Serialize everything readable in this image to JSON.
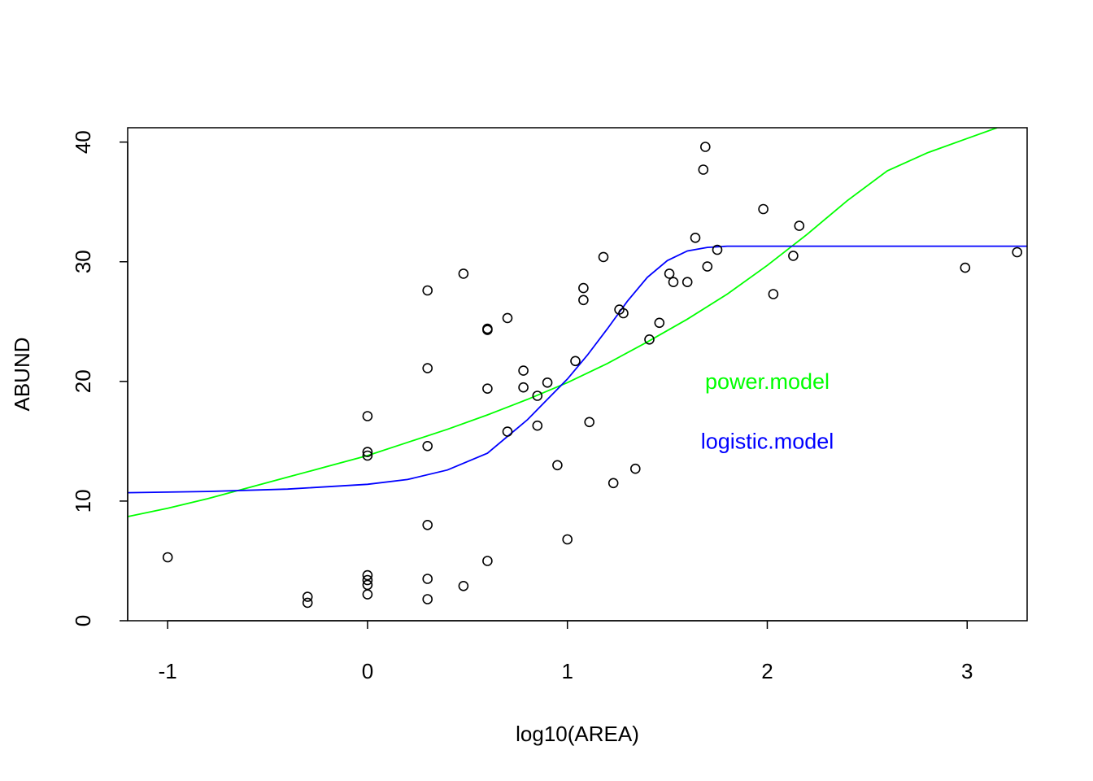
{
  "chart_data": {
    "type": "scatter",
    "title": "",
    "xlabel": "log10(AREA)",
    "ylabel": "ABUND",
    "xlim": [
      -1.2,
      3.3
    ],
    "ylim": [
      0,
      41.2
    ],
    "x_ticks": [
      "-1",
      "0",
      "1",
      "2",
      "3"
    ],
    "x_tick_values": [
      -1,
      0,
      1,
      2,
      3
    ],
    "y_ticks": [
      "0",
      "10",
      "20",
      "30",
      "40"
    ],
    "y_tick_values": [
      0,
      10,
      20,
      30,
      40
    ],
    "grid": false,
    "points": [
      [
        -1.0,
        5.3
      ],
      [
        -0.3,
        2.0
      ],
      [
        -0.3,
        1.5
      ],
      [
        0.0,
        17.1
      ],
      [
        0.0,
        14.1
      ],
      [
        0.0,
        13.8
      ],
      [
        0.0,
        3.8
      ],
      [
        0.0,
        3.4
      ],
      [
        0.0,
        3.0
      ],
      [
        0.0,
        2.2
      ],
      [
        0.3,
        27.6
      ],
      [
        0.3,
        21.1
      ],
      [
        0.3,
        14.6
      ],
      [
        0.3,
        8.0
      ],
      [
        0.3,
        3.5
      ],
      [
        0.3,
        1.8
      ],
      [
        0.48,
        29.0
      ],
      [
        0.48,
        2.9
      ],
      [
        0.6,
        24.3
      ],
      [
        0.6,
        24.4
      ],
      [
        0.6,
        19.4
      ],
      [
        0.6,
        5.0
      ],
      [
        0.7,
        25.3
      ],
      [
        0.7,
        15.8
      ],
      [
        0.78,
        20.9
      ],
      [
        0.78,
        19.5
      ],
      [
        0.85,
        18.8
      ],
      [
        0.85,
        16.3
      ],
      [
        0.9,
        19.9
      ],
      [
        0.95,
        13.0
      ],
      [
        1.0,
        6.8
      ],
      [
        1.04,
        21.7
      ],
      [
        1.08,
        27.8
      ],
      [
        1.08,
        26.8
      ],
      [
        1.11,
        16.6
      ],
      [
        1.18,
        30.4
      ],
      [
        1.23,
        11.5
      ],
      [
        1.26,
        26.0
      ],
      [
        1.28,
        25.7
      ],
      [
        1.34,
        12.7
      ],
      [
        1.41,
        23.5
      ],
      [
        1.46,
        24.9
      ],
      [
        1.51,
        29.0
      ],
      [
        1.53,
        28.3
      ],
      [
        1.6,
        28.3
      ],
      [
        1.64,
        32.0
      ],
      [
        1.68,
        37.7
      ],
      [
        1.69,
        39.6
      ],
      [
        1.7,
        29.6
      ],
      [
        1.75,
        31.0
      ],
      [
        1.98,
        34.4
      ],
      [
        2.03,
        27.3
      ],
      [
        2.13,
        30.5
      ],
      [
        2.16,
        33.0
      ],
      [
        2.99,
        29.5
      ],
      [
        3.25,
        30.8
      ]
    ],
    "series": [
      {
        "name": "power.model",
        "color": "#00ff00",
        "x": [
          -1.2,
          -1.0,
          -0.8,
          -0.6,
          -0.4,
          -0.2,
          0.0,
          0.2,
          0.4,
          0.6,
          0.8,
          1.0,
          1.2,
          1.4,
          1.6,
          1.8,
          2.0,
          2.2,
          2.4,
          2.6,
          2.8,
          3.0,
          3.15
        ],
        "y": [
          8.7,
          9.4,
          10.2,
          11.1,
          12.0,
          12.9,
          13.8,
          14.9,
          16.0,
          17.2,
          18.5,
          19.9,
          21.5,
          23.3,
          25.2,
          27.3,
          29.7,
          32.3,
          35.1,
          37.6,
          39.1,
          40.3,
          41.2
        ]
      },
      {
        "name": "logistic.model",
        "color": "#0000ff",
        "x": [
          -1.2,
          -0.8,
          -0.4,
          0.0,
          0.2,
          0.4,
          0.6,
          0.8,
          0.9,
          1.0,
          1.1,
          1.2,
          1.3,
          1.4,
          1.5,
          1.6,
          1.7,
          1.8,
          2.0,
          2.4,
          2.8,
          3.3
        ],
        "y": [
          10.7,
          10.8,
          11.0,
          11.4,
          11.8,
          12.6,
          14.0,
          16.8,
          18.5,
          20.2,
          22.2,
          24.4,
          26.7,
          28.7,
          30.1,
          30.9,
          31.2,
          31.3,
          31.3,
          31.3,
          31.3,
          31.3
        ]
      }
    ],
    "annotations": [
      {
        "text": "power.model",
        "x": 2.0,
        "y": 20.0,
        "color": "#00ff00"
      },
      {
        "text": "logistic.model",
        "x": 2.0,
        "y": 15.0,
        "color": "#0000ff"
      }
    ]
  }
}
